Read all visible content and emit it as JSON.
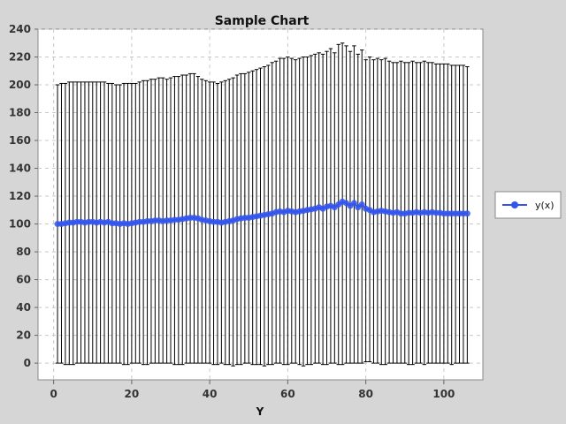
{
  "chart_data": {
    "type": "line",
    "title": "Sample Chart",
    "xlabel": "Y",
    "ylabel": "",
    "xlim": [
      -4,
      110
    ],
    "ylim": [
      -12,
      240
    ],
    "x_ticks": [
      0,
      20,
      40,
      60,
      80,
      100
    ],
    "y_ticks": [
      0,
      20,
      40,
      60,
      80,
      100,
      120,
      140,
      160,
      180,
      200,
      220,
      240
    ],
    "grid": true,
    "legend_position": "right",
    "colors": {
      "series": "#3355ee",
      "error_bar": "#000000",
      "plot_bg": "#ffffff",
      "grid": "#c8c8c8",
      "page_bg": "#d6d6d6"
    },
    "series": [
      {
        "name": "y(x)",
        "x": [
          1,
          2,
          3,
          4,
          5,
          6,
          7,
          8,
          9,
          10,
          11,
          12,
          13,
          14,
          15,
          16,
          17,
          18,
          19,
          20,
          21,
          22,
          23,
          24,
          25,
          26,
          27,
          28,
          29,
          30,
          31,
          32,
          33,
          34,
          35,
          36,
          37,
          38,
          39,
          40,
          41,
          42,
          43,
          44,
          45,
          46,
          47,
          48,
          49,
          50,
          51,
          52,
          53,
          54,
          55,
          56,
          57,
          58,
          59,
          60,
          61,
          62,
          63,
          64,
          65,
          66,
          67,
          68,
          69,
          70,
          71,
          72,
          73,
          74,
          75,
          76,
          77,
          78,
          79,
          80,
          81,
          82,
          83,
          84,
          85,
          86,
          87,
          88,
          89,
          90,
          91,
          92,
          93,
          94,
          95,
          96,
          97,
          98,
          99,
          100,
          101,
          102,
          103,
          104,
          105,
          106
        ],
        "y": [
          100,
          100,
          100.5,
          101,
          101,
          101.5,
          101.5,
          101,
          101.5,
          101.5,
          101,
          101.5,
          101,
          101.5,
          100.5,
          100.5,
          100,
          100.5,
          100,
          100.5,
          101,
          101.5,
          101.5,
          102,
          102,
          102.5,
          102.5,
          102,
          102.5,
          102.5,
          103,
          103,
          103.5,
          104,
          104.5,
          104.5,
          104,
          103,
          102.5,
          102,
          101.5,
          101.5,
          101,
          101.5,
          102,
          102.5,
          103.5,
          104,
          104.5,
          104.5,
          105,
          105.5,
          106,
          106.5,
          107,
          107.5,
          108.5,
          109,
          108.5,
          109.5,
          109,
          108.5,
          109,
          109.5,
          110,
          110.5,
          111,
          112,
          111,
          112.5,
          113,
          112,
          114,
          116,
          115,
          113,
          115,
          112,
          114,
          111,
          110,
          108.5,
          109,
          109.5,
          109,
          108.5,
          108,
          108.5,
          107.5,
          107.5,
          108,
          108,
          108.5,
          108,
          108.5,
          108,
          108.5,
          108,
          108,
          107.5,
          107.5,
          107.5,
          107.5,
          107.5,
          107.5,
          107.5
        ],
        "y_low": [
          0,
          0,
          -1,
          -1,
          -1,
          0,
          0,
          0,
          0,
          0,
          0,
          0,
          0,
          0,
          0,
          0,
          0,
          -1,
          -1,
          0,
          0,
          0,
          -1,
          -1,
          0,
          0,
          0,
          0,
          0,
          0,
          -1,
          -1,
          -1,
          0,
          0,
          0,
          0,
          0,
          0,
          0,
          -1,
          -1,
          0,
          -1,
          -1,
          -2,
          -1,
          -1,
          0,
          0,
          -1,
          -1,
          -1,
          -2,
          -1,
          -1,
          0,
          0,
          -1,
          -1,
          0,
          0,
          -1,
          -2,
          -1,
          -1,
          0,
          0,
          -1,
          -1,
          0,
          0,
          -1,
          -1,
          0,
          0,
          0,
          0,
          0,
          1,
          1,
          0,
          0,
          -1,
          -1,
          0,
          0,
          0,
          0,
          0,
          -1,
          -1,
          0,
          0,
          -1,
          0,
          0,
          0,
          0,
          0,
          0,
          -1,
          0,
          0,
          0,
          0
        ],
        "y_high": [
          200,
          201,
          201,
          202,
          202,
          202,
          202,
          202,
          202,
          202,
          202,
          202,
          202,
          201,
          201,
          200,
          200,
          201,
          201,
          201,
          201,
          202,
          203,
          203,
          204,
          204,
          205,
          205,
          204,
          205,
          206,
          206,
          207,
          207,
          208,
          208,
          206,
          204,
          203,
          202,
          202,
          201,
          202,
          203,
          204,
          205,
          207,
          208,
          208,
          209,
          210,
          211,
          212,
          213,
          214,
          216,
          217,
          219,
          219,
          220,
          219,
          218,
          219,
          220,
          220,
          221,
          222,
          223,
          222,
          224,
          226,
          223,
          229,
          230,
          228,
          224,
          228,
          222,
          225,
          218,
          220,
          218,
          219,
          218,
          219,
          217,
          216,
          216,
          217,
          216,
          216,
          217,
          216,
          216,
          217,
          216,
          216,
          215,
          215,
          215,
          215,
          214,
          214,
          214,
          214,
          213
        ]
      }
    ]
  }
}
